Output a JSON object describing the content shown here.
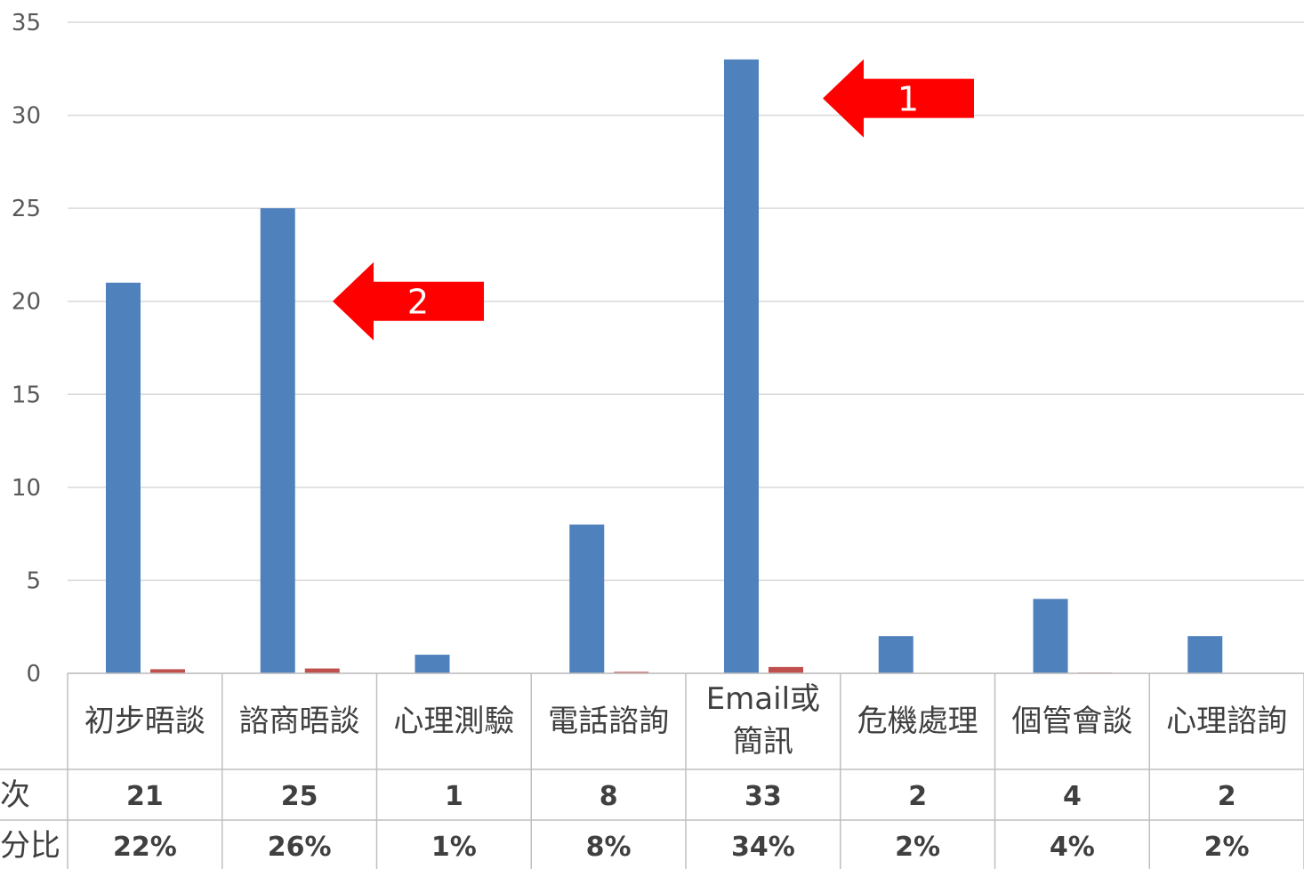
{
  "chart_data": {
    "type": "bar",
    "categories": [
      "初步晤談",
      "諮商晤談",
      "心理測驗",
      "電話諮詢",
      "Email或\n簡訊",
      "危機處理",
      "個管會談",
      "心理諮詢"
    ],
    "series": [
      {
        "name": "人次",
        "values": [
          21,
          25,
          1,
          8,
          33,
          2,
          4,
          2
        ],
        "color": "#4f81bd"
      },
      {
        "name": "百分比",
        "values": [
          0.22,
          0.26,
          0.01,
          0.08,
          0.34,
          0.02,
          0.04,
          0.02
        ],
        "color": "#c0504d"
      }
    ],
    "ylim": [
      0,
      35
    ],
    "yticks": [
      0,
      5,
      10,
      15,
      20,
      25,
      30,
      35
    ],
    "grid": true,
    "data_table": {
      "rows": [
        {
          "label": "次",
          "cells": [
            "21",
            "25",
            "1",
            "8",
            "33",
            "2",
            "4",
            "2"
          ]
        },
        {
          "label": "分比",
          "cells": [
            "22%",
            "26%",
            "1%",
            "8%",
            "34%",
            "2%",
            "4%",
            "2%"
          ]
        }
      ]
    },
    "annotations": [
      {
        "label": "1",
        "category_index": 4,
        "value": 30,
        "color": "#ff0000"
      },
      {
        "label": "2",
        "category_index": 1,
        "value": 20,
        "color": "#ff0000"
      }
    ]
  }
}
